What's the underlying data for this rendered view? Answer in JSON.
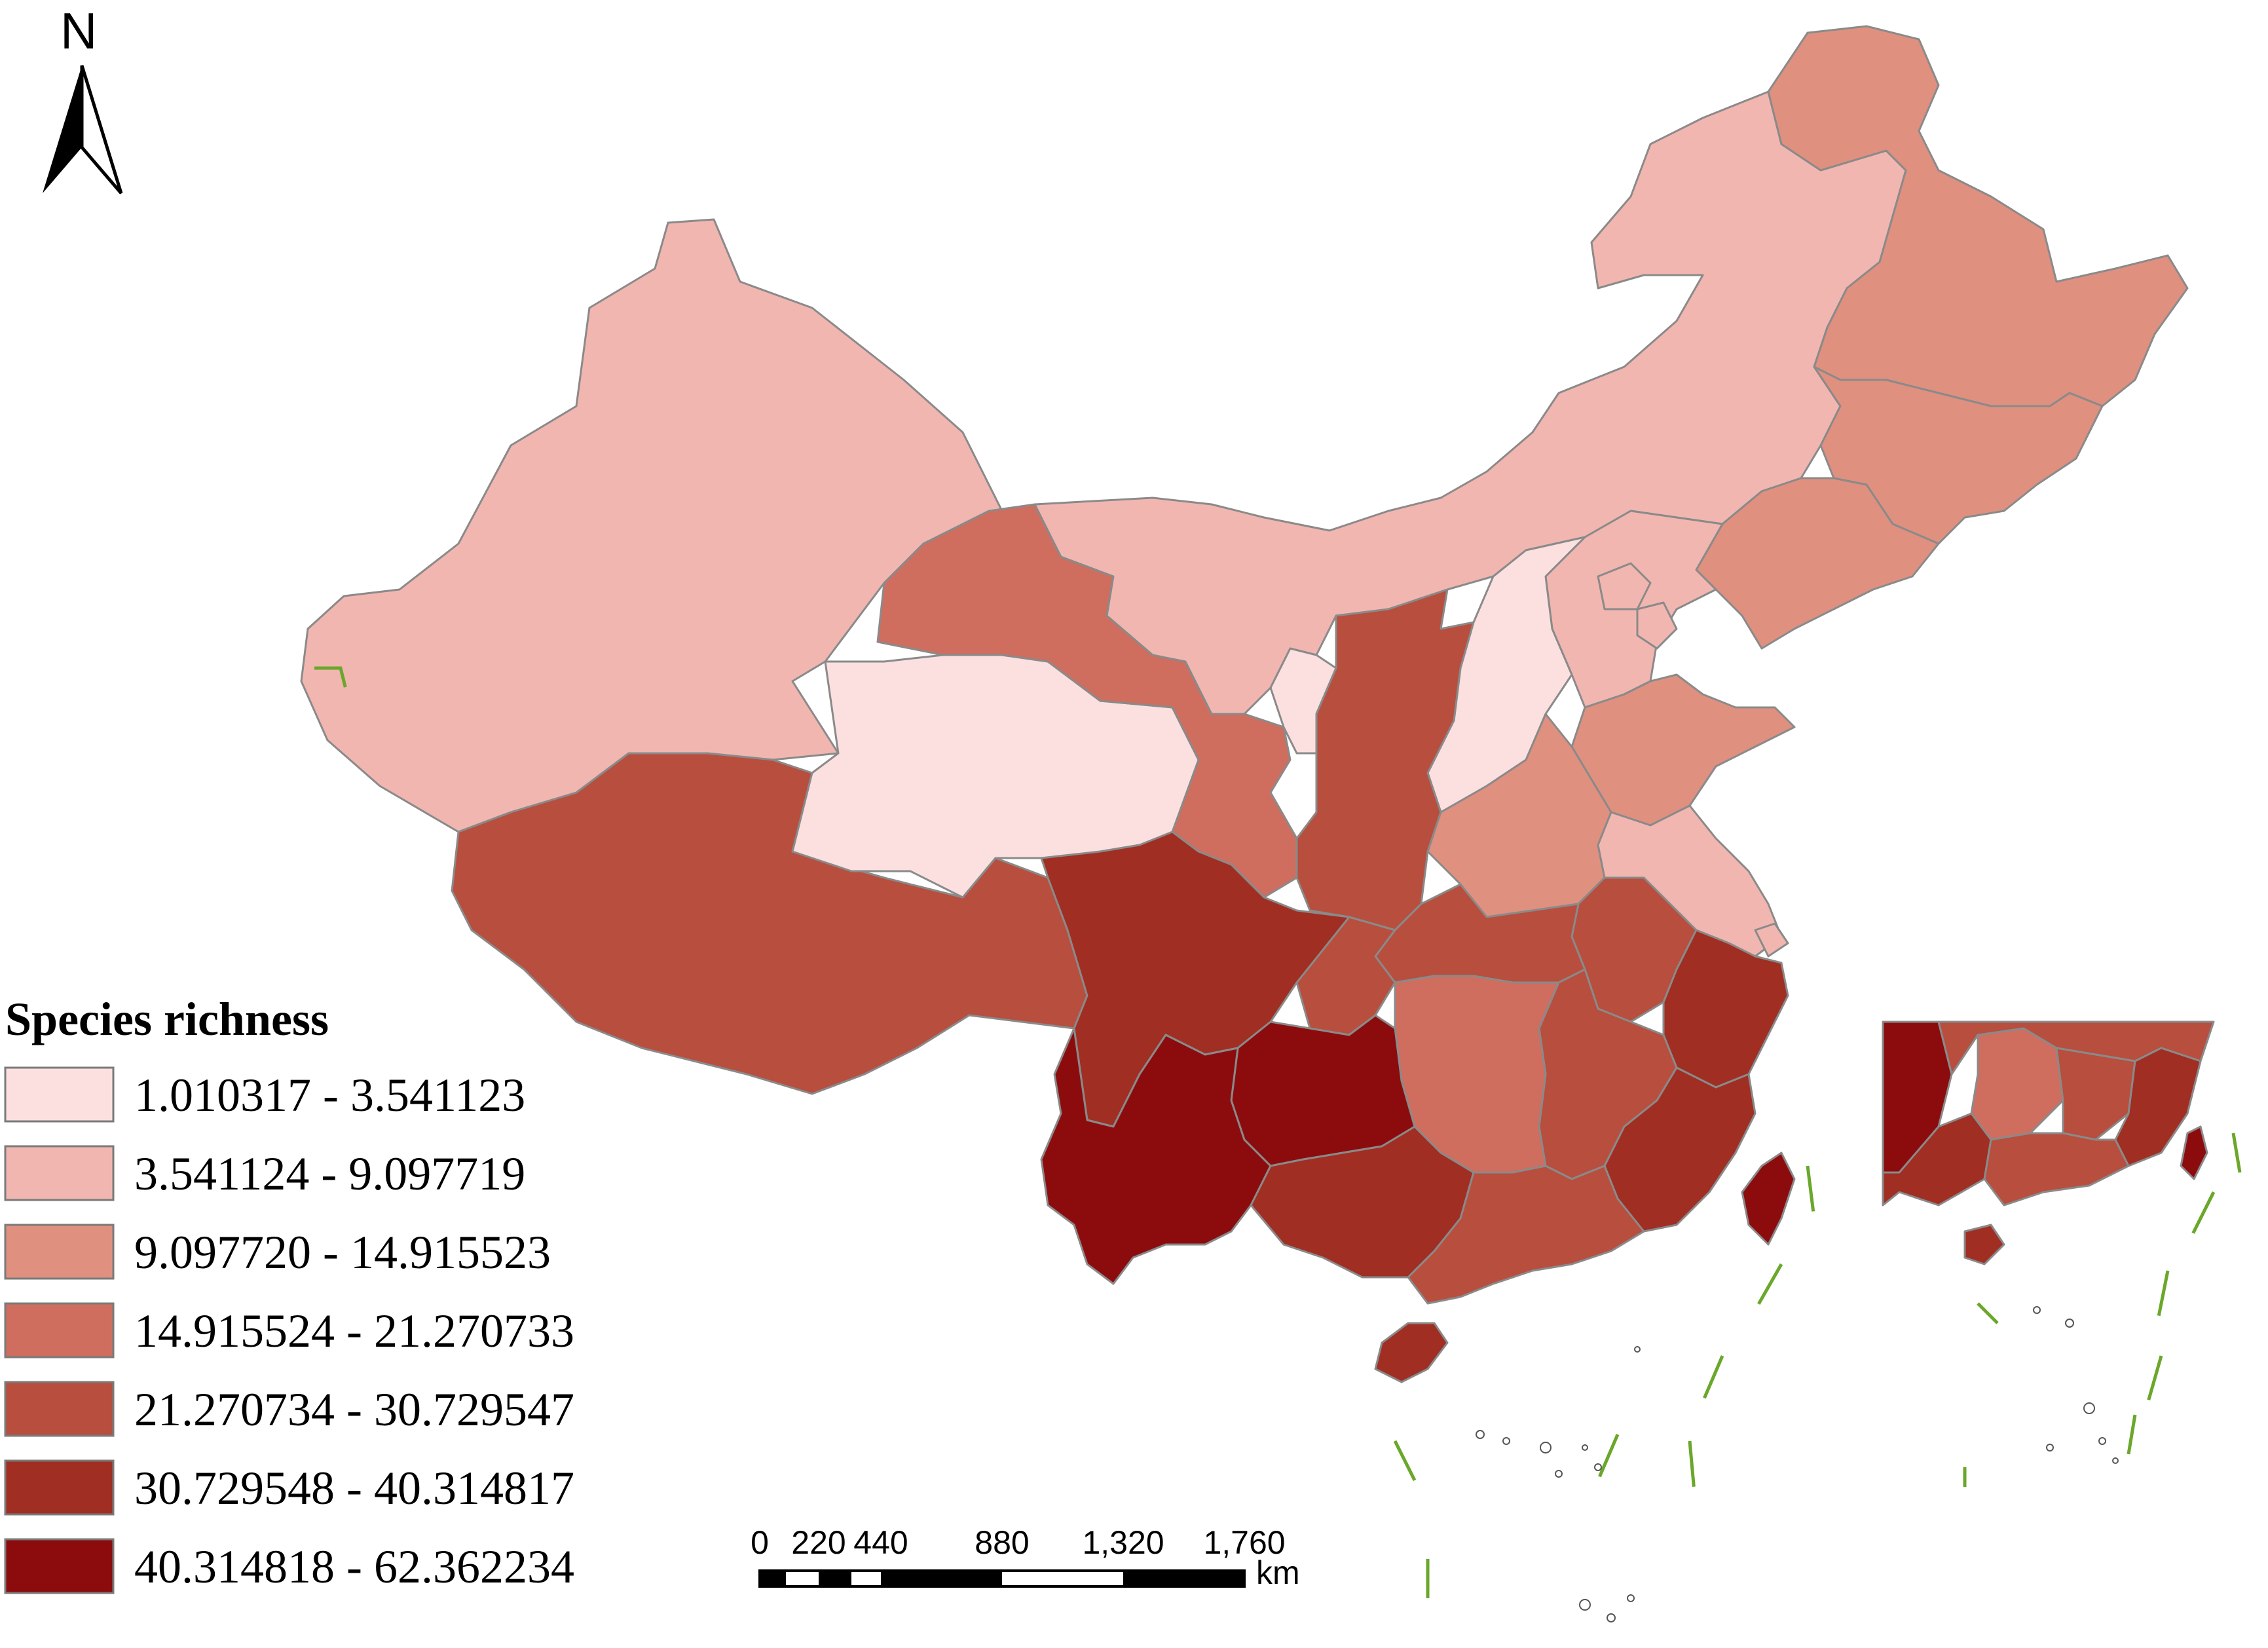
{
  "north_arrow": {
    "label": "N"
  },
  "legend": {
    "title": "Species richness",
    "classes": [
      {
        "label": "1.010317 - 3.541123",
        "color": "#fce0e0"
      },
      {
        "label": "3.541124 - 9.097719",
        "color": "#f2b6b0"
      },
      {
        "label": "9.097720 - 14.915523",
        "color": "#e0907f"
      },
      {
        "label": "14.915524 - 21.270733",
        "color": "#cf6e5e"
      },
      {
        "label": "21.270734 - 30.729547",
        "color": "#b84e3e"
      },
      {
        "label": "30.729548 - 40.314817",
        "color": "#a02e22"
      },
      {
        "label": "40.314818 - 62.362234",
        "color": "#8c0c0e"
      }
    ]
  },
  "scale_bar": {
    "ticks": [
      "0",
      "220",
      "440",
      "880",
      "1,320",
      "1,760"
    ],
    "unit": "km"
  },
  "colors": {
    "province_border": "#8a8a8a",
    "boundary_line": "#6aa72b"
  }
}
